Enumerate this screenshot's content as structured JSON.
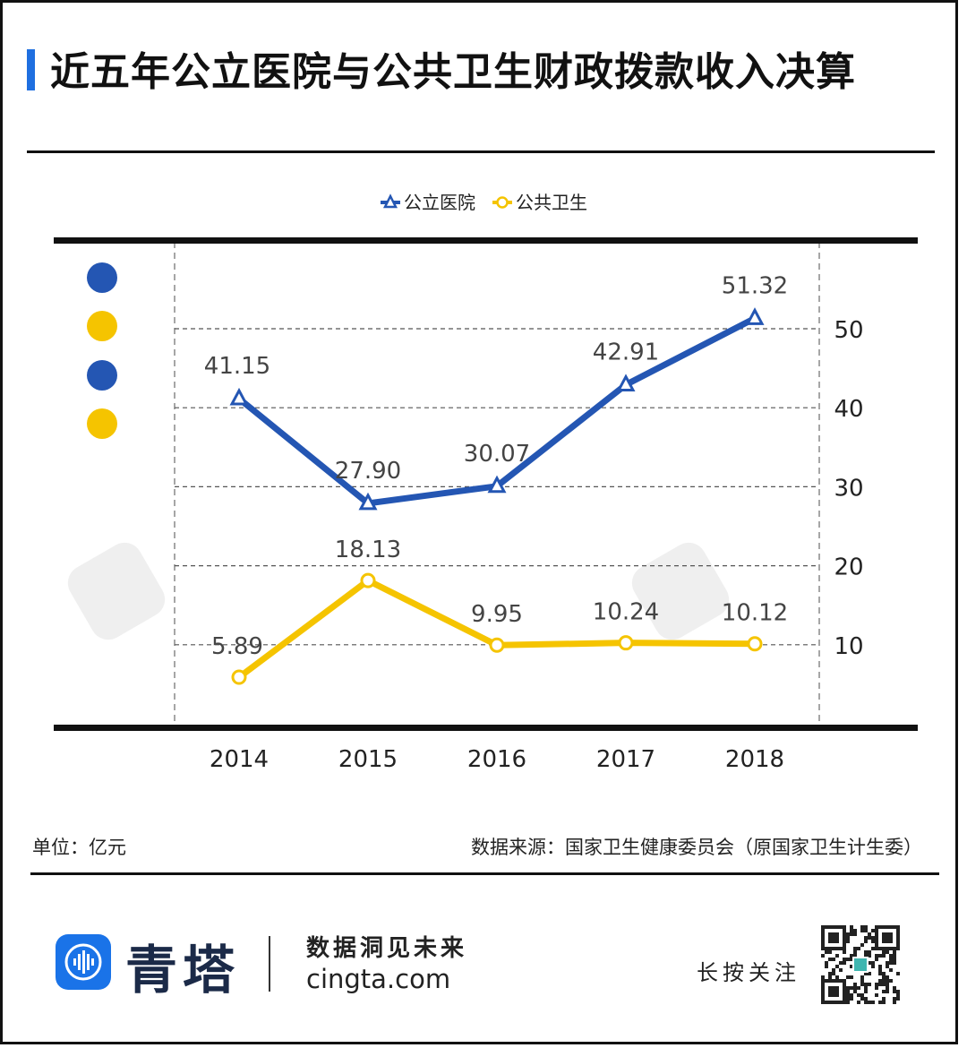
{
  "header": {
    "title": "近五年公立医院与公共卫生财政拨款收入决算"
  },
  "chart_data": {
    "type": "line",
    "x": [
      "2014",
      "2015",
      "2016",
      "2017",
      "2018"
    ],
    "series": [
      {
        "name": "公立医院",
        "values": [
          41.15,
          27.9,
          30.07,
          42.91,
          51.32
        ],
        "labels": [
          "41.15",
          "27.90",
          "30.07",
          "42.91",
          "51.32"
        ],
        "color": "#2456b3",
        "marker": "triangle"
      },
      {
        "name": "公共卫生",
        "values": [
          5.89,
          18.13,
          9.95,
          10.24,
          10.12
        ],
        "labels": [
          "5.89",
          "18.13",
          "9.95",
          "10.24",
          "10.12"
        ],
        "color": "#f5c400",
        "marker": "circle"
      }
    ],
    "yticks": [
      "10",
      "20",
      "30",
      "40",
      "50"
    ],
    "ylim": [
      0,
      59
    ],
    "y_axis_side": "right",
    "grid": "dashed-horizontal",
    "legend_position": "top-center",
    "title": "",
    "xlabel": "",
    "ylabel": ""
  },
  "footer": {
    "unit": "单位：亿元",
    "source": "数据来源：国家卫生健康委员会（原国家卫生计生委）"
  },
  "brand": {
    "logo_icon": "soundwave-icon",
    "name": "青塔",
    "slogan": "数据洞见未来",
    "site": "cingta.com",
    "follow": "长按关注",
    "qr_icon": "qr-code-icon",
    "accent": "#1a73e8"
  }
}
